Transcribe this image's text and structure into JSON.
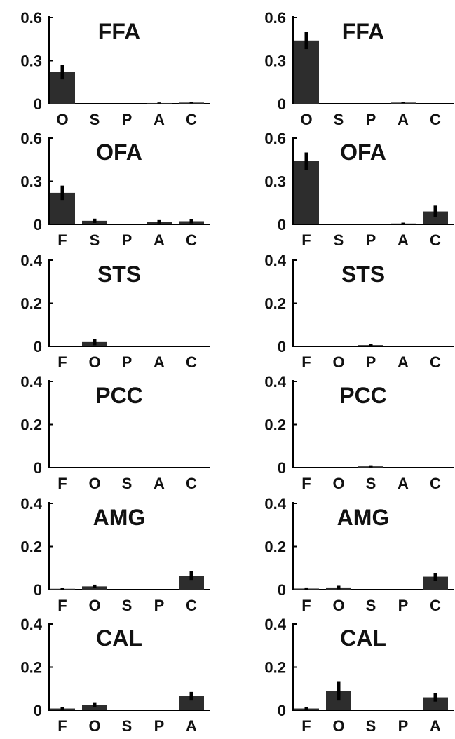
{
  "colors": {
    "bar": "#2d2d2d",
    "errorbar": "#000000",
    "axis": "#000000",
    "text": "#111111"
  },
  "chart_data": [
    {
      "type": "bar",
      "title": "FFA",
      "categories": [
        "O",
        "S",
        "P",
        "A",
        "C"
      ],
      "values": [
        0.22,
        0.0,
        0.0,
        0.005,
        0.008
      ],
      "errors": [
        0.05,
        0,
        0,
        0.004,
        0.005
      ],
      "ylim": [
        0,
        0.6
      ],
      "yticks": [
        "0",
        "0.3",
        "0.6"
      ],
      "xlabel": "",
      "ylabel": "",
      "grid": false
    },
    {
      "type": "bar",
      "title": "FFA",
      "categories": [
        "O",
        "S",
        "P",
        "A",
        "C"
      ],
      "values": [
        0.44,
        0.0,
        0.0,
        0.008,
        0.0
      ],
      "errors": [
        0.06,
        0,
        0,
        0.004,
        0
      ],
      "ylim": [
        0,
        0.6
      ],
      "yticks": [
        "0",
        "0.3",
        "0.6"
      ],
      "xlabel": "",
      "ylabel": "",
      "grid": false
    },
    {
      "type": "bar",
      "title": "OFA",
      "categories": [
        "F",
        "S",
        "P",
        "A",
        "C"
      ],
      "values": [
        0.22,
        0.025,
        0.0,
        0.018,
        0.022
      ],
      "errors": [
        0.05,
        0.015,
        0,
        0.012,
        0.015
      ],
      "ylim": [
        0,
        0.6
      ],
      "yticks": [
        "0",
        "0.3",
        "0.6"
      ],
      "xlabel": "",
      "ylabel": "",
      "grid": false
    },
    {
      "type": "bar",
      "title": "OFA",
      "categories": [
        "F",
        "S",
        "P",
        "A",
        "C"
      ],
      "values": [
        0.44,
        0.0,
        0.0,
        0.006,
        0.09
      ],
      "errors": [
        0.06,
        0,
        0,
        0.006,
        0.04
      ],
      "ylim": [
        0,
        0.6
      ],
      "yticks": [
        "0",
        "0.3",
        "0.6"
      ],
      "xlabel": "",
      "ylabel": "",
      "grid": false
    },
    {
      "type": "bar",
      "title": "STS",
      "categories": [
        "F",
        "O",
        "P",
        "A",
        "C"
      ],
      "values": [
        0.0,
        0.02,
        0.0,
        0.0,
        0.0
      ],
      "errors": [
        0,
        0.015,
        0,
        0,
        0
      ],
      "ylim": [
        0,
        0.4
      ],
      "yticks": [
        "0",
        "0.2",
        "0.4"
      ],
      "xlabel": "",
      "ylabel": "",
      "grid": false
    },
    {
      "type": "bar",
      "title": "STS",
      "categories": [
        "F",
        "O",
        "P",
        "A",
        "C"
      ],
      "values": [
        0.0,
        0.0,
        0.006,
        0.0,
        0.0
      ],
      "errors": [
        0,
        0,
        0.006,
        0,
        0
      ],
      "ylim": [
        0,
        0.4
      ],
      "yticks": [
        "0",
        "0.2",
        "0.4"
      ],
      "xlabel": "",
      "ylabel": "",
      "grid": false
    },
    {
      "type": "bar",
      "title": "PCC",
      "categories": [
        "F",
        "O",
        "S",
        "A",
        "C"
      ],
      "values": [
        0.0,
        0.0,
        0.0,
        0.0,
        0.0
      ],
      "errors": [
        0,
        0,
        0,
        0,
        0
      ],
      "ylim": [
        0,
        0.4
      ],
      "yticks": [
        "0",
        "0.2",
        "0.4"
      ],
      "xlabel": "",
      "ylabel": "",
      "grid": false
    },
    {
      "type": "bar",
      "title": "PCC",
      "categories": [
        "F",
        "O",
        "S",
        "A",
        "C"
      ],
      "values": [
        0.0,
        0.0,
        0.006,
        0.0,
        0.0
      ],
      "errors": [
        0,
        0,
        0.005,
        0,
        0
      ],
      "ylim": [
        0,
        0.4
      ],
      "yticks": [
        "0",
        "0.2",
        "0.4"
      ],
      "xlabel": "",
      "ylabel": "",
      "grid": false
    },
    {
      "type": "bar",
      "title": "AMG",
      "categories": [
        "F",
        "O",
        "S",
        "P",
        "C"
      ],
      "values": [
        0.004,
        0.015,
        0.0,
        0.0,
        0.065
      ],
      "errors": [
        0.004,
        0.008,
        0,
        0,
        0.02
      ],
      "ylim": [
        0,
        0.4
      ],
      "yticks": [
        "0",
        "0.2",
        "0.4"
      ],
      "xlabel": "",
      "ylabel": "",
      "grid": false
    },
    {
      "type": "bar",
      "title": "AMG",
      "categories": [
        "F",
        "O",
        "S",
        "P",
        "C"
      ],
      "values": [
        0.005,
        0.01,
        0.0,
        0.0,
        0.06
      ],
      "errors": [
        0.005,
        0.008,
        0,
        0,
        0.018
      ],
      "ylim": [
        0,
        0.4
      ],
      "yticks": [
        "0",
        "0.2",
        "0.4"
      ],
      "xlabel": "",
      "ylabel": "",
      "grid": false
    },
    {
      "type": "bar",
      "title": "CAL",
      "categories": [
        "F",
        "O",
        "S",
        "P",
        "A"
      ],
      "values": [
        0.008,
        0.025,
        0.0,
        0.0,
        0.065
      ],
      "errors": [
        0.006,
        0.012,
        0,
        0,
        0.02
      ],
      "ylim": [
        0,
        0.4
      ],
      "yticks": [
        "0",
        "0.2",
        "0.4"
      ],
      "xlabel": "",
      "ylabel": "",
      "grid": false
    },
    {
      "type": "bar",
      "title": "CAL",
      "categories": [
        "F",
        "O",
        "S",
        "P",
        "A"
      ],
      "values": [
        0.008,
        0.09,
        0.0,
        0.0,
        0.06
      ],
      "errors": [
        0.006,
        0.045,
        0,
        0,
        0.02
      ],
      "ylim": [
        0,
        0.4
      ],
      "yticks": [
        "0",
        "0.2",
        "0.4"
      ],
      "xlabel": "",
      "ylabel": "",
      "grid": false
    }
  ]
}
